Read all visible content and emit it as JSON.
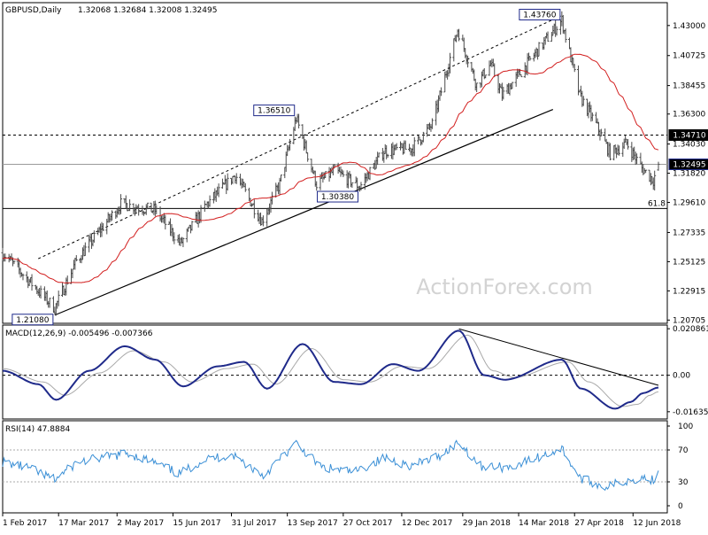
{
  "header": {
    "symbol": "GBPUSD,Daily",
    "ohlc": "1.32068 1.32684 1.32008 1.32495"
  },
  "watermark": "ActionForex.com",
  "colors": {
    "bull": "#4a4a4a",
    "bear": "#4a4a4a",
    "ma": "#d21e1e",
    "macd_main": "#1f2a8a",
    "macd_signal": "#a9a9a9",
    "rsi": "#3a8fd6",
    "trendline": "#000000",
    "watermark": "#d3d3d3",
    "axis_text": "#000000",
    "label_box_border": "#1f2a8a"
  },
  "chart_data": [
    {
      "type": "candlestick",
      "title": "GBPUSD,Daily",
      "y_ticks": [
        "1.43000",
        "1.40725",
        "1.38455",
        "1.36300",
        "1.34030",
        "1.31820",
        "1.29610",
        "1.27335",
        "1.25125",
        "1.22915",
        "1.20705"
      ],
      "ylim": [
        1.2046,
        1.4473
      ],
      "x_ticks": [
        "1 Feb 2017",
        "17 Mar 2017",
        "2 May 2017",
        "15 Jun 2017",
        "31 Jul 2017",
        "13 Sep 2017",
        "27 Oct 2017",
        "12 Dec 2017",
        "29 Jan 2018",
        "14 Mar 2018",
        "27 Apr 2018",
        "12 Jun 2018"
      ],
      "key_points": [
        {
          "date": "2017-03-14",
          "price": 1.2108,
          "label": "1.21080"
        },
        {
          "date": "2017-09-20",
          "price": 1.3651,
          "label": "1.36510"
        },
        {
          "date": "2017-11-09",
          "price": 1.3038,
          "label": "1.30380"
        },
        {
          "date": "2018-04-17",
          "price": 1.4376,
          "label": "1.43760"
        },
        {
          "date": "2018-06-29",
          "price": 1.32495,
          "label": "1.32495"
        }
      ],
      "horizontal_levels": [
        {
          "price": 1.3471,
          "label": "1.34710",
          "style": "dashed"
        },
        {
          "price": 1.32495,
          "label": "1.32495",
          "style": "solid-gray"
        },
        {
          "price": 1.2915,
          "label": "61.8",
          "style": "solid"
        }
      ],
      "moving_average": true,
      "trend_channel": {
        "upper": {
          "from": [
            "2017-03-01",
            1.2535
          ],
          "to": [
            "2018-04-17",
            1.4376
          ]
        },
        "lower": {
          "from": [
            "2017-03-14",
            1.2108
          ],
          "to": [
            "2018-04-10",
            1.3665
          ]
        }
      },
      "segments": [
        {
          "date": "2017-02-01",
          "value": 1.258
        },
        {
          "date": "2017-03-14",
          "value": 1.216
        },
        {
          "date": "2017-03-31",
          "value": 1.252
        },
        {
          "date": "2017-05-05",
          "value": 1.295
        },
        {
          "date": "2017-06-01",
          "value": 1.29
        },
        {
          "date": "2017-06-21",
          "value": 1.265
        },
        {
          "date": "2017-07-12",
          "value": 1.295
        },
        {
          "date": "2017-08-03",
          "value": 1.317
        },
        {
          "date": "2017-08-24",
          "value": 1.282
        },
        {
          "date": "2017-09-07",
          "value": 1.31
        },
        {
          "date": "2017-09-20",
          "value": 1.36
        },
        {
          "date": "2017-10-06",
          "value": 1.31
        },
        {
          "date": "2017-10-20",
          "value": 1.32
        },
        {
          "date": "2017-11-09",
          "value": 1.308
        },
        {
          "date": "2017-11-28",
          "value": 1.335
        },
        {
          "date": "2017-12-20",
          "value": 1.337
        },
        {
          "date": "2018-01-05",
          "value": 1.355
        },
        {
          "date": "2018-01-25",
          "value": 1.427
        },
        {
          "date": "2018-02-09",
          "value": 1.385
        },
        {
          "date": "2018-02-20",
          "value": 1.401
        },
        {
          "date": "2018-03-01",
          "value": 1.377
        },
        {
          "date": "2018-03-16",
          "value": 1.395
        },
        {
          "date": "2018-03-28",
          "value": 1.41
        },
        {
          "date": "2018-04-17",
          "value": 1.434
        },
        {
          "date": "2018-05-01",
          "value": 1.377
        },
        {
          "date": "2018-05-14",
          "value": 1.355
        },
        {
          "date": "2018-05-25",
          "value": 1.333
        },
        {
          "date": "2018-06-07",
          "value": 1.341
        },
        {
          "date": "2018-06-19",
          "value": 1.322
        },
        {
          "date": "2018-06-28",
          "value": 1.313
        },
        {
          "date": "2018-07-02",
          "value": 1.3249
        }
      ]
    },
    {
      "type": "line",
      "title": "MACD(12,26,9) -0.005496 -0.007366",
      "y_ticks": [
        "0.020861",
        "0.00",
        "-0.016357"
      ],
      "ylim": [
        -0.0196,
        0.0225
      ],
      "series": [
        {
          "name": "main",
          "points": [
            [
              "2017-02-01",
              0.002
            ],
            [
              "2017-03-01",
              -0.004
            ],
            [
              "2017-03-15",
              -0.011
            ],
            [
              "2017-04-10",
              0.002
            ],
            [
              "2017-05-08",
              0.013
            ],
            [
              "2017-06-01",
              0.007
            ],
            [
              "2017-06-23",
              -0.005
            ],
            [
              "2017-07-20",
              0.004
            ],
            [
              "2017-08-10",
              0.006
            ],
            [
              "2017-08-28",
              -0.006
            ],
            [
              "2017-09-25",
              0.014
            ],
            [
              "2017-10-20",
              -0.003
            ],
            [
              "2017-11-10",
              -0.004
            ],
            [
              "2017-12-05",
              0.005
            ],
            [
              "2017-12-25",
              0.002
            ],
            [
              "2018-01-26",
              0.02
            ],
            [
              "2018-02-15",
              0.0
            ],
            [
              "2018-03-03",
              -0.002
            ],
            [
              "2018-04-17",
              0.007
            ],
            [
              "2018-05-02",
              -0.006
            ],
            [
              "2018-05-29",
              -0.015
            ],
            [
              "2018-06-10",
              -0.012
            ],
            [
              "2018-06-20",
              -0.008
            ],
            [
              "2018-07-02",
              -0.0055
            ]
          ]
        },
        {
          "name": "signal",
          "points": [
            [
              "2017-02-01",
              0.003
            ],
            [
              "2017-03-05",
              -0.003
            ],
            [
              "2017-03-22",
              -0.009
            ],
            [
              "2017-04-18",
              0.001
            ],
            [
              "2017-05-15",
              0.011
            ],
            [
              "2017-06-08",
              0.006
            ],
            [
              "2017-06-30",
              -0.003
            ],
            [
              "2017-07-27",
              0.003
            ],
            [
              "2017-08-17",
              0.005
            ],
            [
              "2017-09-04",
              -0.004
            ],
            [
              "2017-10-02",
              0.012
            ],
            [
              "2017-10-27",
              -0.002
            ],
            [
              "2017-11-17",
              -0.003
            ],
            [
              "2017-12-12",
              0.004
            ],
            [
              "2018-01-02",
              0.003
            ],
            [
              "2018-02-02",
              0.018
            ],
            [
              "2018-02-22",
              0.002
            ],
            [
              "2018-03-10",
              -0.001
            ],
            [
              "2018-04-22",
              0.006
            ],
            [
              "2018-05-08",
              -0.003
            ],
            [
              "2018-06-04",
              -0.014
            ],
            [
              "2018-06-16",
              -0.013
            ],
            [
              "2018-06-25",
              -0.009
            ],
            [
              "2018-07-02",
              -0.007366
            ]
          ]
        }
      ],
      "trendline": {
        "from": [
          "2018-01-26",
          0.0208
        ],
        "to": [
          "2018-07-02",
          -0.0045
        ]
      }
    },
    {
      "type": "line",
      "title": "RSI(14) 47.8884",
      "y_ticks": [
        "100",
        "70",
        "30",
        "0"
      ],
      "ylim": [
        0,
        100
      ],
      "levels": [
        70,
        30
      ],
      "series": [
        {
          "name": "RSI",
          "points": [
            [
              "2017-02-01",
              55
            ],
            [
              "2017-02-20",
              48
            ],
            [
              "2017-03-14",
              33
            ],
            [
              "2017-04-01",
              55
            ],
            [
              "2017-04-20",
              60
            ],
            [
              "2017-05-10",
              66
            ],
            [
              "2017-05-30",
              55
            ],
            [
              "2017-06-20",
              40
            ],
            [
              "2017-07-10",
              58
            ],
            [
              "2017-08-01",
              64
            ],
            [
              "2017-08-25",
              38
            ],
            [
              "2017-09-20",
              78
            ],
            [
              "2017-10-10",
              48
            ],
            [
              "2017-11-05",
              42
            ],
            [
              "2017-11-28",
              60
            ],
            [
              "2017-12-20",
              50
            ],
            [
              "2018-01-10",
              62
            ],
            [
              "2018-01-26",
              80
            ],
            [
              "2018-02-12",
              50
            ],
            [
              "2018-03-05",
              48
            ],
            [
              "2018-03-25",
              58
            ],
            [
              "2018-04-17",
              72
            ],
            [
              "2018-05-01",
              35
            ],
            [
              "2018-05-20",
              24
            ],
            [
              "2018-06-05",
              30
            ],
            [
              "2018-06-19",
              36
            ],
            [
              "2018-06-28",
              32
            ],
            [
              "2018-07-02",
              47.89
            ]
          ]
        }
      ]
    }
  ]
}
